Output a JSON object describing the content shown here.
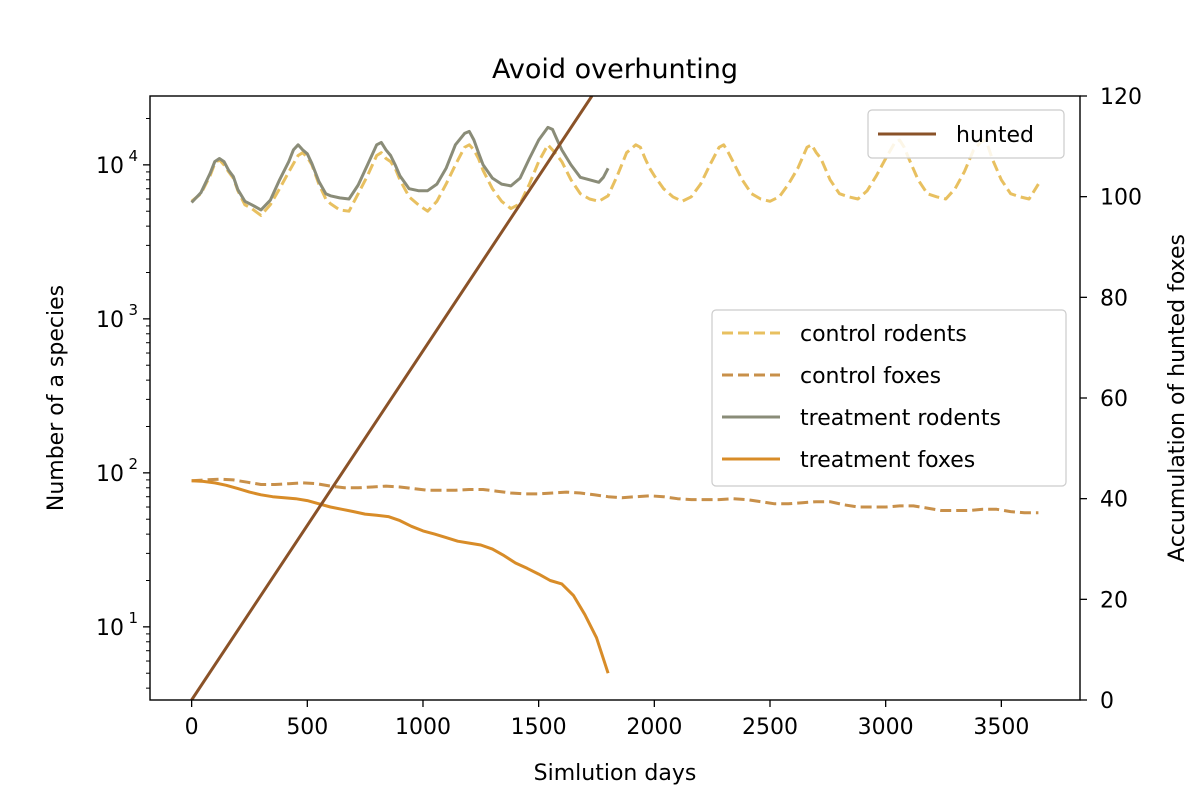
{
  "chart_data": {
    "type": "line",
    "title": "Avoid overhunting",
    "xlabel": "Simlution days",
    "ylabel_left": "Number of a species",
    "ylabel_right": "Accumulation of hunted foxes",
    "x_ticks": [
      0,
      500,
      1000,
      1500,
      2000,
      2500,
      3000,
      3500
    ],
    "y_left_scale": "log",
    "y_left_ticks": [
      {
        "value": 10,
        "label": "10",
        "exp": "1"
      },
      {
        "value": 100,
        "label": "10",
        "exp": "2"
      },
      {
        "value": 1000,
        "label": "10",
        "exp": "3"
      },
      {
        "value": 10000,
        "label": "10",
        "exp": "4"
      }
    ],
    "y_right_ticks": [
      0,
      20,
      40,
      60,
      80,
      100,
      120
    ],
    "xlim": [
      -180,
      3840
    ],
    "y_left_lim": [
      3.35,
      28000
    ],
    "y_right_lim": [
      0,
      120
    ],
    "grid": false,
    "legend_right": {
      "placement": "upper right",
      "entries": [
        "hunted"
      ]
    },
    "legend_left": {
      "placement": "center right",
      "entries": [
        "control rodents",
        "control foxes",
        "treatment rodents",
        "treatment foxes"
      ]
    },
    "colors": {
      "control_rodents": "#E8C060",
      "control_foxes": "#C8904A",
      "treatment_rodents": "#8A8C78",
      "treatment_foxes": "#D88C28",
      "hunted": "#8A5228"
    },
    "series": [
      {
        "name": "control rodents",
        "axis": "left",
        "style": "dashed",
        "x": [
          0,
          40,
          80,
          100,
          120,
          140,
          160,
          180,
          200,
          230,
          260,
          300,
          340,
          380,
          420,
          460,
          480,
          500,
          520,
          550,
          580,
          600,
          640,
          680,
          720,
          760,
          800,
          820,
          840,
          860,
          880,
          900,
          940,
          980,
          1020,
          1060,
          1100,
          1140,
          1180,
          1200,
          1220,
          1240,
          1260,
          1300,
          1340,
          1380,
          1420,
          1460,
          1500,
          1540,
          1560,
          1580,
          1600,
          1640,
          1680,
          1720,
          1760,
          1800,
          1840,
          1880,
          1920,
          1940,
          1960,
          1980,
          2000,
          2040,
          2080,
          2120,
          2160,
          2200,
          2240,
          2280,
          2300,
          2320,
          2340,
          2380,
          2420,
          2460,
          2500,
          2540,
          2580,
          2620,
          2660,
          2680,
          2700,
          2720,
          2760,
          2800,
          2840,
          2880,
          2920,
          2960,
          3000,
          3040,
          3060,
          3080,
          3100,
          3140,
          3180,
          3220,
          3260,
          3300,
          3340,
          3380,
          3420,
          3440,
          3460,
          3500,
          3540,
          3580,
          3620,
          3660
        ],
        "y": [
          5800,
          6500,
          8500,
          10200,
          10800,
          10000,
          9000,
          8200,
          6800,
          5500,
          5200,
          4700,
          5500,
          7000,
          9000,
          11500,
          12000,
          11200,
          10000,
          7500,
          6000,
          5600,
          5100,
          5000,
          6500,
          8500,
          11500,
          12000,
          11000,
          10500,
          9500,
          8000,
          6200,
          5500,
          5000,
          5800,
          7500,
          10000,
          13000,
          13500,
          12500,
          11000,
          9200,
          7000,
          5800,
          5200,
          5600,
          7500,
          10500,
          13500,
          12500,
          11500,
          10500,
          8000,
          6500,
          6000,
          5800,
          6300,
          8500,
          12000,
          13500,
          13000,
          11000,
          9500,
          8500,
          7000,
          6200,
          5800,
          6200,
          7500,
          10000,
          13000,
          13500,
          12000,
          10500,
          8000,
          6500,
          6000,
          5800,
          6200,
          7500,
          9500,
          13000,
          13500,
          12000,
          11000,
          8000,
          6500,
          6200,
          6000,
          6800,
          8500,
          11000,
          14000,
          14500,
          13000,
          11000,
          8000,
          6500,
          6200,
          6000,
          7000,
          9000,
          12500,
          14500,
          13500,
          11000,
          8000,
          6500,
          6200,
          6000,
          7500
        ]
      },
      {
        "name": "control foxes",
        "axis": "left",
        "style": "dashed",
        "x": [
          0,
          60,
          120,
          180,
          240,
          300,
          360,
          420,
          480,
          540,
          600,
          660,
          720,
          780,
          840,
          900,
          960,
          1020,
          1080,
          1140,
          1200,
          1260,
          1320,
          1380,
          1440,
          1500,
          1560,
          1620,
          1680,
          1740,
          1800,
          1860,
          1920,
          1980,
          2040,
          2100,
          2160,
          2220,
          2280,
          2340,
          2400,
          2460,
          2520,
          2580,
          2640,
          2700,
          2760,
          2820,
          2880,
          2940,
          3000,
          3060,
          3120,
          3180,
          3240,
          3300,
          3360,
          3420,
          3480,
          3540,
          3600,
          3660
        ],
        "y": [
          89,
          90,
          91,
          90,
          87,
          84,
          84,
          85,
          86,
          85,
          82,
          80,
          80,
          81,
          82,
          81,
          79,
          77,
          77,
          77,
          78,
          78,
          76,
          74,
          73,
          73,
          74,
          75,
          74,
          72,
          70,
          69,
          70,
          71,
          70,
          68,
          67,
          67,
          67,
          68,
          67,
          65,
          63,
          63,
          64,
          65,
          65,
          62,
          60,
          60,
          60,
          61,
          61,
          59,
          57,
          57,
          57,
          58,
          58,
          56,
          55,
          55
        ]
      },
      {
        "name": "treatment rodents",
        "axis": "left",
        "style": "solid",
        "x": [
          0,
          40,
          80,
          100,
          120,
          140,
          160,
          180,
          200,
          230,
          260,
          300,
          340,
          380,
          420,
          440,
          460,
          480,
          500,
          520,
          550,
          580,
          600,
          640,
          680,
          720,
          760,
          800,
          820,
          840,
          860,
          880,
          900,
          940,
          980,
          1020,
          1060,
          1100,
          1140,
          1180,
          1200,
          1220,
          1240,
          1260,
          1300,
          1340,
          1380,
          1420,
          1460,
          1500,
          1540,
          1560,
          1580,
          1600,
          1640,
          1680,
          1720,
          1760,
          1780,
          1800
        ],
        "y": [
          5700,
          6600,
          8800,
          10500,
          11000,
          10500,
          9200,
          8400,
          6900,
          5800,
          5500,
          5100,
          5900,
          8000,
          10500,
          12500,
          13500,
          12500,
          11800,
          10200,
          7800,
          6500,
          6300,
          6100,
          6000,
          7400,
          10000,
          13500,
          14000,
          12500,
          11500,
          10000,
          8500,
          7000,
          6800,
          6800,
          7500,
          9500,
          13500,
          16000,
          16500,
          14500,
          12000,
          10000,
          8200,
          7500,
          7300,
          8200,
          11000,
          14500,
          17500,
          17000,
          14500,
          12500,
          10000,
          8300,
          8000,
          7700,
          8300,
          9500
        ]
      },
      {
        "name": "treatment foxes",
        "axis": "left",
        "style": "solid",
        "x": [
          0,
          50,
          100,
          150,
          200,
          250,
          300,
          350,
          400,
          450,
          500,
          550,
          600,
          650,
          700,
          750,
          800,
          850,
          900,
          950,
          1000,
          1050,
          1100,
          1150,
          1200,
          1250,
          1300,
          1350,
          1400,
          1450,
          1500,
          1550,
          1600,
          1650,
          1700,
          1750,
          1800
        ],
        "y": [
          89,
          88,
          86,
          83,
          79,
          75,
          72,
          70,
          69,
          68,
          66,
          63,
          60,
          58,
          56,
          54,
          53,
          52,
          49,
          45,
          42,
          40,
          38,
          36,
          35,
          34,
          32,
          29,
          26,
          24,
          22,
          20,
          19,
          16,
          12,
          8.5,
          5
        ]
      },
      {
        "name": "hunted",
        "axis": "right",
        "style": "solid",
        "x": [
          0,
          1730
        ],
        "y": [
          0,
          120
        ]
      }
    ]
  }
}
